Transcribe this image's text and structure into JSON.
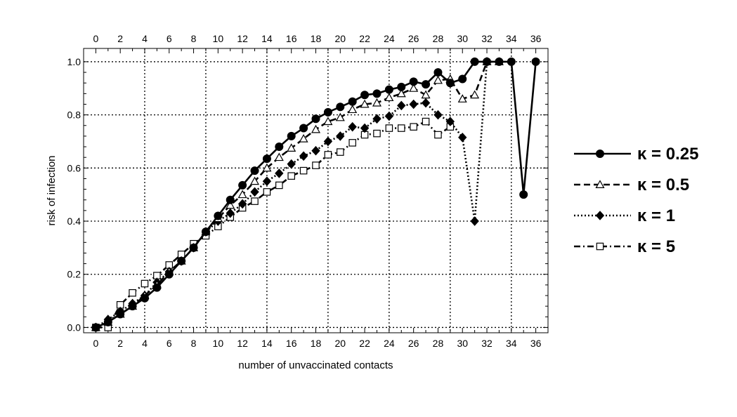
{
  "chart_data": {
    "type": "line",
    "title": "",
    "xlabel": "number of unvaccinated contacts",
    "ylabel": "risk of infection",
    "xlim": [
      -1,
      37
    ],
    "ylim": [
      -0.02,
      1.05
    ],
    "x_ticks": [
      0,
      2,
      4,
      6,
      8,
      10,
      12,
      14,
      16,
      18,
      20,
      22,
      24,
      26,
      28,
      30,
      32,
      34,
      36
    ],
    "y_ticks": [
      "0.0",
      "0.2",
      "0.4",
      "0.6",
      "0.8",
      "1.0"
    ],
    "grid": {
      "vertical_lines_at": [
        4,
        9,
        14,
        19,
        24,
        29,
        34
      ],
      "horizontal": true,
      "style": "dotted"
    },
    "legend_position": "right",
    "series": [
      {
        "name": "κ = 0.25",
        "line": "solid",
        "marker": "filled-circle",
        "x": [
          0,
          1,
          2,
          3,
          4,
          5,
          6,
          7,
          8,
          9,
          10,
          11,
          12,
          13,
          14,
          15,
          16,
          17,
          18,
          19,
          20,
          21,
          22,
          23,
          24,
          25,
          26,
          27,
          28,
          29,
          30,
          31,
          32,
          33,
          34,
          35,
          36
        ],
        "y": [
          0.0,
          0.02,
          0.05,
          0.08,
          0.11,
          0.15,
          0.2,
          0.25,
          0.3,
          0.36,
          0.42,
          0.48,
          0.535,
          0.59,
          0.635,
          0.68,
          0.72,
          0.75,
          0.785,
          0.81,
          0.83,
          0.85,
          0.875,
          0.88,
          0.895,
          0.905,
          0.925,
          0.915,
          0.96,
          0.92,
          0.935,
          1.0,
          1.0,
          1.0,
          1.0,
          0.5,
          1.0
        ]
      },
      {
        "name": "κ = 0.5",
        "line": "dashed",
        "marker": "open-triangle",
        "x": [
          0,
          1,
          2,
          3,
          4,
          5,
          6,
          7,
          8,
          9,
          10,
          11,
          12,
          13,
          14,
          15,
          16,
          17,
          18,
          19,
          20,
          21,
          22,
          23,
          24,
          25,
          26,
          27,
          28,
          29,
          30,
          31,
          32,
          33
        ],
        "y": [
          0.0,
          0.02,
          0.05,
          0.08,
          0.12,
          0.16,
          0.21,
          0.25,
          0.3,
          0.36,
          0.41,
          0.46,
          0.5,
          0.55,
          0.6,
          0.64,
          0.675,
          0.71,
          0.745,
          0.775,
          0.79,
          0.82,
          0.84,
          0.845,
          0.865,
          0.88,
          0.9,
          0.875,
          0.93,
          0.935,
          0.86,
          0.875,
          1.0,
          1.0
        ]
      },
      {
        "name": "κ = 1",
        "line": "dotted",
        "marker": "filled-diamond",
        "x": [
          0,
          1,
          2,
          3,
          4,
          5,
          6,
          7,
          8,
          9,
          10,
          11,
          12,
          13,
          14,
          15,
          16,
          17,
          18,
          19,
          20,
          21,
          22,
          23,
          24,
          25,
          26,
          27,
          28,
          29,
          30,
          31,
          32
        ],
        "y": [
          0.0,
          0.03,
          0.06,
          0.09,
          0.12,
          0.17,
          0.21,
          0.25,
          0.3,
          0.36,
          0.4,
          0.43,
          0.465,
          0.51,
          0.55,
          0.58,
          0.615,
          0.645,
          0.665,
          0.7,
          0.72,
          0.755,
          0.75,
          0.785,
          0.795,
          0.835,
          0.84,
          0.845,
          0.8,
          0.775,
          0.715,
          0.4,
          1.0
        ]
      },
      {
        "name": "κ = 5",
        "line": "dash-dot",
        "marker": "open-square",
        "x": [
          0,
          1,
          2,
          3,
          4,
          5,
          6,
          7,
          8,
          9,
          10,
          11,
          12,
          13,
          14,
          15,
          16,
          17,
          18,
          19,
          20,
          21,
          22,
          23,
          24,
          25,
          26,
          27,
          28,
          29
        ],
        "y": [
          0.0,
          0.0,
          0.085,
          0.13,
          0.165,
          0.195,
          0.235,
          0.275,
          0.315,
          0.345,
          0.38,
          0.415,
          0.45,
          0.475,
          0.51,
          0.535,
          0.57,
          0.59,
          0.61,
          0.65,
          0.66,
          0.695,
          0.725,
          0.73,
          0.75,
          0.75,
          0.755,
          0.775,
          0.725,
          0.755
        ]
      }
    ]
  }
}
